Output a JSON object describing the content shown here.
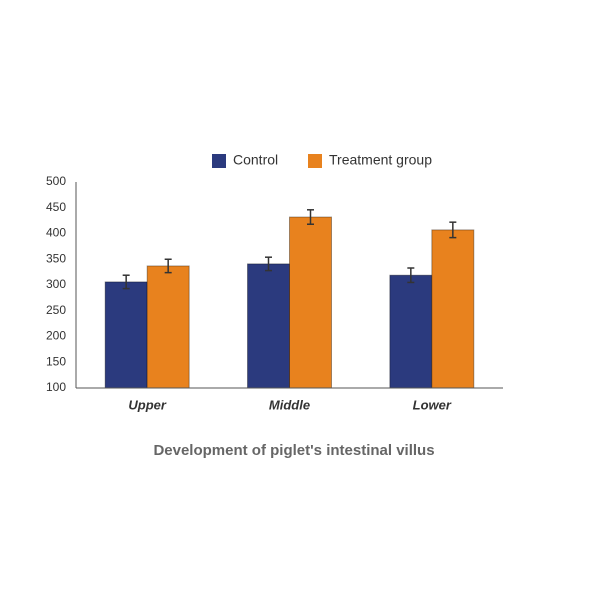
{
  "chart_data": {
    "type": "bar",
    "title": "Development of piglet's intestinal villus",
    "categories": [
      "Upper",
      "Middle",
      "Lower"
    ],
    "series": [
      {
        "name": "Control",
        "color": "#2b3a7e",
        "values": [
          306,
          341,
          319
        ],
        "errors": [
          13,
          13,
          14
        ]
      },
      {
        "name": "Treatment group",
        "color": "#e8821e",
        "values": [
          337,
          432,
          407
        ],
        "errors": [
          13,
          14,
          15
        ]
      }
    ],
    "ylim": [
      100,
      500
    ],
    "yticks": [
      100,
      150,
      200,
      250,
      300,
      350,
      400,
      450,
      500
    ],
    "grid": false
  }
}
